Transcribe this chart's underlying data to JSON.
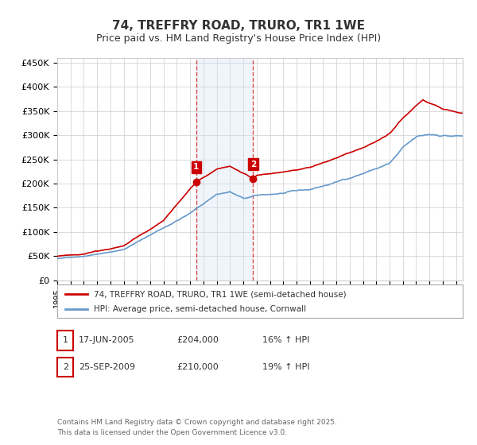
{
  "title": "74, TREFFRY ROAD, TRURO, TR1 1WE",
  "subtitle": "Price paid vs. HM Land Registry's House Price Index (HPI)",
  "ylim": [
    0,
    460000
  ],
  "yticks": [
    0,
    50000,
    100000,
    150000,
    200000,
    250000,
    300000,
    350000,
    400000,
    450000
  ],
  "ytick_labels": [
    "£0",
    "£50K",
    "£100K",
    "£150K",
    "£200K",
    "£250K",
    "£300K",
    "£350K",
    "£400K",
    "£450K"
  ],
  "line1_color": "#cc0000",
  "line2_color": "#6699cc",
  "purchase1_date": 2005.46,
  "purchase1_price": 204000,
  "purchase2_date": 2009.73,
  "purchase2_price": 210000,
  "vline_color": "#cc0000",
  "vfill_color": "#cce0f0",
  "legend1": "74, TREFFRY ROAD, TRURO, TR1 1WE (semi-detached house)",
  "legend2": "HPI: Average price, semi-detached house, Cornwall",
  "table_row1": [
    "1",
    "17-JUN-2005",
    "£204,000",
    "16% ↑ HPI"
  ],
  "table_row2": [
    "2",
    "25-SEP-2009",
    "£210,000",
    "19% ↑ HPI"
  ],
  "footnote": "Contains HM Land Registry data © Crown copyright and database right 2025.\nThis data is licensed under the Open Government Licence v3.0.",
  "title_fontsize": 11,
  "subtitle_fontsize": 9,
  "tick_fontsize": 8,
  "background_color": "#ffffff",
  "grid_color": "#cccccc"
}
